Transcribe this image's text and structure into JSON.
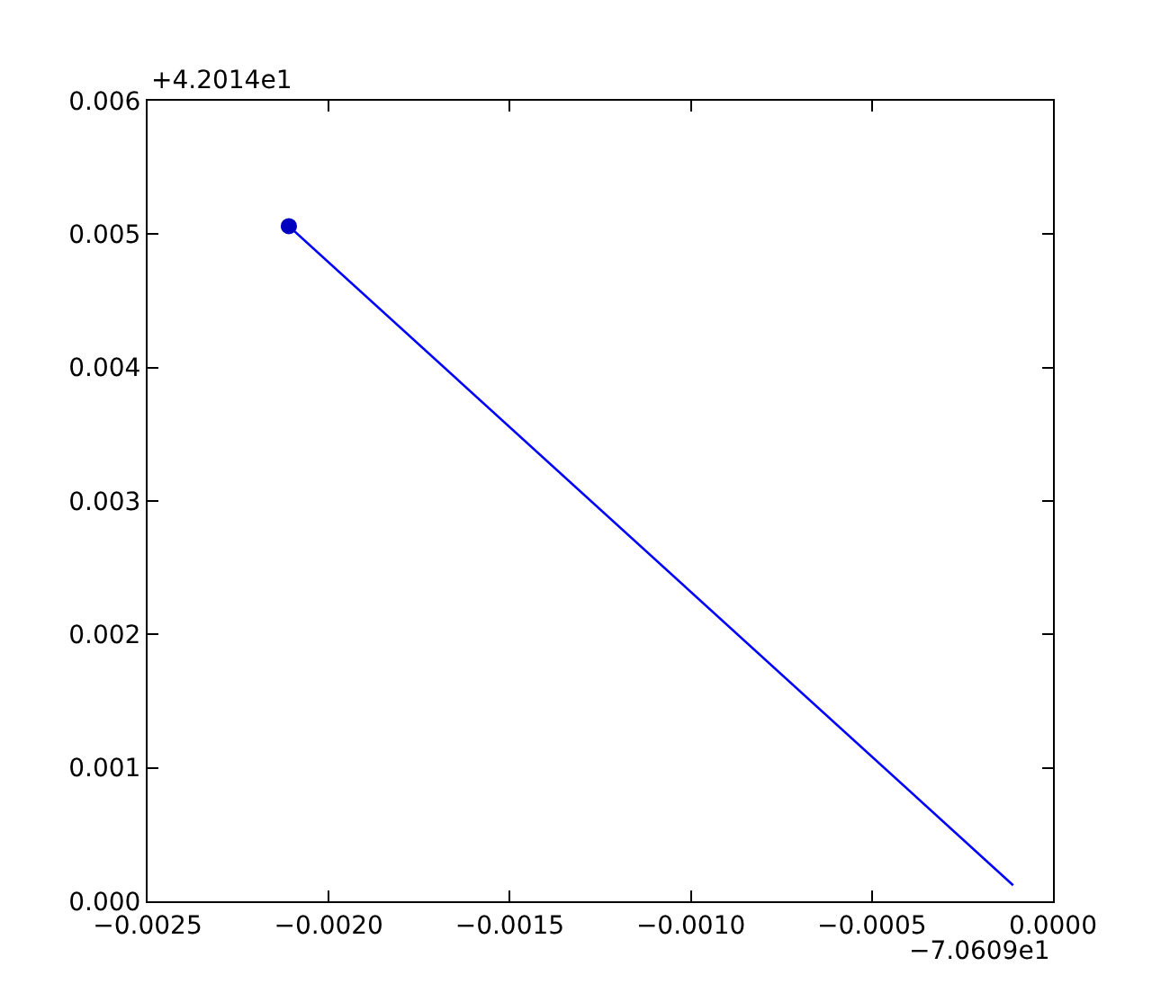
{
  "chart_data": {
    "type": "line",
    "series": [
      {
        "color": "#0000ff",
        "marker": "none",
        "values": [
          0.00506,
          0.00012
        ]
      },
      {
        "type": "scatter",
        "color": "#0000bf",
        "marker": "circle",
        "values": [
          0.00506,
          null
        ]
      }
    ],
    "x": [
      -0.00211,
      -0.00011
    ],
    "xlim": [
      -0.0025,
      0.0
    ],
    "ylim": [
      0.0,
      0.006
    ],
    "xticks": [
      {
        "value": -0.0025,
        "label": "−0.0025"
      },
      {
        "value": -0.002,
        "label": "−0.0020"
      },
      {
        "value": -0.0015,
        "label": "−0.0015"
      },
      {
        "value": -0.001,
        "label": "−0.0010"
      },
      {
        "value": -0.0005,
        "label": "−0.0005"
      },
      {
        "value": 0.0,
        "label": "0.0000"
      }
    ],
    "yticks": [
      {
        "value": 0.0,
        "label": "0.000"
      },
      {
        "value": 0.001,
        "label": "0.001"
      },
      {
        "value": 0.002,
        "label": "0.002"
      },
      {
        "value": 0.003,
        "label": "0.003"
      },
      {
        "value": 0.004,
        "label": "0.004"
      },
      {
        "value": 0.005,
        "label": "0.005"
      },
      {
        "value": 0.006,
        "label": "0.006"
      }
    ],
    "annotations": [
      "+4.2014e1",
      "−7.0609e1"
    ],
    "grid": false
  }
}
